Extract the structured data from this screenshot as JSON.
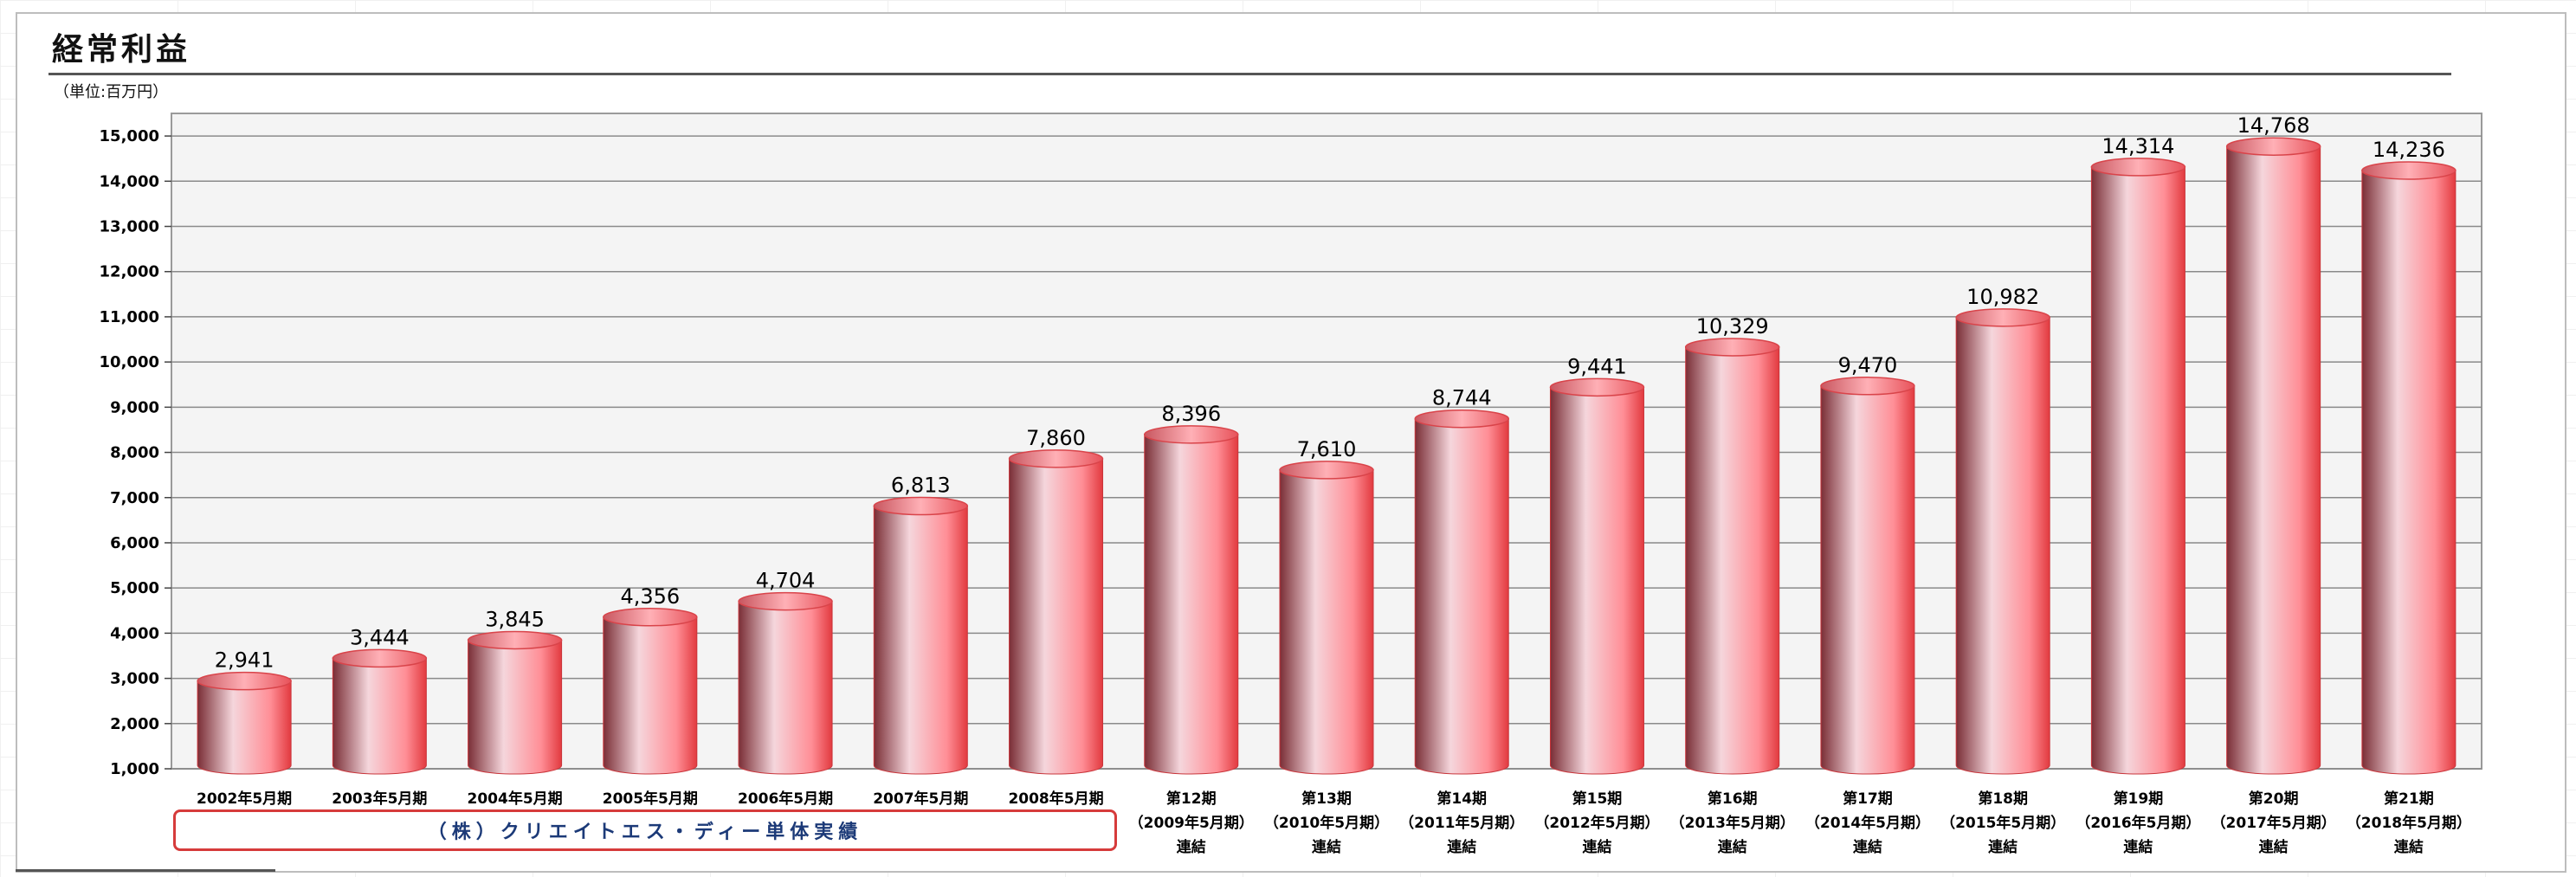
{
  "header": {
    "title": "経常利益",
    "unit": "（単位:百万円）"
  },
  "colors": {
    "bar_light": "#f5d6dc",
    "bar_mid": "#ff8e96",
    "bar_dark": "#7a2e36",
    "bar_edge": "#e23a3f",
    "plot_bg": "#f4f4f4",
    "box_border": "#d63b3b",
    "box_text": "#1c3a78"
  },
  "solo_box_label": "（株）クリエイトエス・ディー単体実績",
  "chart_data": {
    "type": "bar",
    "style": "3d-cylinder",
    "title": "経常利益",
    "ylabel": "（単位:百万円）",
    "ylim": [
      1000,
      15500
    ],
    "yticks": [
      "1,000",
      "2,000",
      "3,000",
      "4,000",
      "5,000",
      "6,000",
      "7,000",
      "8,000",
      "9,000",
      "10,000",
      "11,000",
      "12,000",
      "13,000",
      "14,000",
      "15,000"
    ],
    "ytick_values": [
      1000,
      2000,
      3000,
      4000,
      5000,
      6000,
      7000,
      8000,
      9000,
      10000,
      11000,
      12000,
      13000,
      14000,
      15000
    ],
    "grid": true,
    "categories": [
      [
        "2002年5月期"
      ],
      [
        "2003年5月期"
      ],
      [
        "2004年5月期"
      ],
      [
        "2005年5月期"
      ],
      [
        "2006年5月期"
      ],
      [
        "2007年5月期"
      ],
      [
        "2008年5月期"
      ],
      [
        "第12期",
        "（2009年5月期）",
        "連結"
      ],
      [
        "第13期",
        "（2010年5月期）",
        "連結"
      ],
      [
        "第14期",
        "（2011年5月期）",
        "連結"
      ],
      [
        "第15期",
        "（2012年5月期）",
        "連結"
      ],
      [
        "第16期",
        "（2013年5月期）",
        "連結"
      ],
      [
        "第17期",
        "（2014年5月期）",
        "連結"
      ],
      [
        "第18期",
        "（2015年5月期）",
        "連結"
      ],
      [
        "第19期",
        "（2016年5月期）",
        "連結"
      ],
      [
        "第20期",
        "（2017年5月期）",
        "連結"
      ],
      [
        "第21期",
        "（2018年5月期）",
        "連結"
      ]
    ],
    "values": [
      2941,
      3444,
      3845,
      4356,
      4704,
      6813,
      7860,
      8396,
      7610,
      8744,
      9441,
      10329,
      9470,
      10982,
      14314,
      14768,
      14236
    ],
    "value_labels": [
      "2,941",
      "3,444",
      "3,845",
      "4,356",
      "4,704",
      "6,813",
      "7,860",
      "8,396",
      "7,610",
      "8,744",
      "9,441",
      "10,329",
      "9,470",
      "10,982",
      "14,314",
      "14,768",
      "14,236"
    ]
  }
}
